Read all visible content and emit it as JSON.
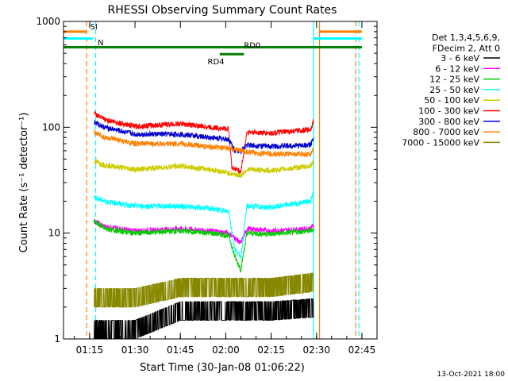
{
  "chart_data": {
    "type": "line",
    "title": "RHESSI Observing Summary Count Rates",
    "xlabel": "Start Time (30-Jan-08 01:06:22)",
    "ylabel": "Count Rate (s⁻¹ detector⁻¹)",
    "y_scale": "log",
    "ylim": [
      1,
      1000
    ],
    "xlim": [
      "01:06:22",
      "02:50:00"
    ],
    "x_ticks": [
      "01:15",
      "01:30",
      "01:45",
      "02:00",
      "02:15",
      "02:30",
      "02:45"
    ],
    "y_ticks": [
      "1",
      "10",
      "100",
      "1000"
    ],
    "grid": false,
    "legend_header": [
      "Det 1,3,4,5,6,9,",
      "FDecim 2, Att 0"
    ],
    "legend_position": "right",
    "timestamp": "13-Oct-2021 18:00",
    "series": [
      {
        "name": "3 - 6 keV",
        "color": "#000000",
        "points": [
          [
            "01:16:30",
            1.0
          ],
          [
            "01:30",
            1.0
          ],
          [
            "01:45",
            1.5
          ],
          [
            "02:00",
            1.5
          ],
          [
            "02:15",
            1.5
          ],
          [
            "02:29",
            1.6
          ]
        ]
      },
      {
        "name": "6 - 12 keV",
        "color": "#ff00ff",
        "points": [
          [
            "01:16:30",
            13
          ],
          [
            "01:20",
            11.5
          ],
          [
            "01:30",
            10.5
          ],
          [
            "01:45",
            11
          ],
          [
            "01:55",
            10.5
          ],
          [
            "02:01",
            10
          ],
          [
            "02:03",
            9
          ],
          [
            "02:05",
            8
          ],
          [
            "02:07",
            11
          ],
          [
            "02:15",
            10.5
          ],
          [
            "02:28",
            11
          ],
          [
            "02:29",
            12
          ]
        ]
      },
      {
        "name": "12 - 25 keV",
        "color": "#00cc00",
        "points": [
          [
            "01:16:30",
            13
          ],
          [
            "01:20",
            11
          ],
          [
            "01:30",
            10
          ],
          [
            "01:45",
            10.5
          ],
          [
            "01:55",
            10
          ],
          [
            "02:01",
            9.5
          ],
          [
            "02:03",
            6
          ],
          [
            "02:05",
            4.5
          ],
          [
            "02:07",
            10
          ],
          [
            "02:15",
            9.8
          ],
          [
            "02:28",
            10.5
          ],
          [
            "02:29",
            11
          ]
        ]
      },
      {
        "name": "25 - 50 keV",
        "color": "#00ffff",
        "points": [
          [
            "01:16:30",
            22
          ],
          [
            "01:20",
            20
          ],
          [
            "01:30",
            18
          ],
          [
            "01:45",
            18
          ],
          [
            "01:55",
            17
          ],
          [
            "02:01",
            16
          ],
          [
            "02:03",
            7
          ],
          [
            "02:05",
            6
          ],
          [
            "02:07",
            18
          ],
          [
            "02:15",
            17.5
          ],
          [
            "02:28",
            20
          ],
          [
            "02:29",
            25
          ]
        ]
      },
      {
        "name": "50 - 100 keV",
        "color": "#cccc00",
        "points": [
          [
            "01:16:30",
            48
          ],
          [
            "01:20",
            44
          ],
          [
            "01:30",
            40
          ],
          [
            "01:45",
            43
          ],
          [
            "01:55",
            40
          ],
          [
            "02:01",
            37
          ],
          [
            "02:03",
            36
          ],
          [
            "02:05",
            35
          ],
          [
            "02:07",
            40
          ],
          [
            "02:15",
            39
          ],
          [
            "02:28",
            43
          ],
          [
            "02:29",
            48
          ]
        ]
      },
      {
        "name": "100 - 300 keV",
        "color": "#ff0000",
        "points": [
          [
            "01:16:30",
            135
          ],
          [
            "01:20",
            118
          ],
          [
            "01:30",
            102
          ],
          [
            "01:45",
            108
          ],
          [
            "01:55",
            100
          ],
          [
            "02:01",
            96
          ],
          [
            "02:02",
            42
          ],
          [
            "02:05",
            38
          ],
          [
            "02:07",
            90
          ],
          [
            "02:15",
            88
          ],
          [
            "02:28",
            95
          ],
          [
            "02:29",
            115
          ]
        ]
      },
      {
        "name": "300 - 800 keV",
        "color": "#0000cc",
        "points": [
          [
            "01:16:30",
            112
          ],
          [
            "01:20",
            100
          ],
          [
            "01:30",
            86
          ],
          [
            "01:45",
            86
          ],
          [
            "01:55",
            80
          ],
          [
            "02:01",
            77
          ],
          [
            "02:03",
            60
          ],
          [
            "02:05",
            60
          ],
          [
            "02:07",
            68
          ],
          [
            "02:15",
            66
          ],
          [
            "02:28",
            68
          ],
          [
            "02:29",
            78
          ]
        ]
      },
      {
        "name": "800 - 7000 keV",
        "color": "#ff8000",
        "points": [
          [
            "01:16:30",
            90
          ],
          [
            "01:20",
            80
          ],
          [
            "01:30",
            70
          ],
          [
            "01:45",
            70
          ],
          [
            "01:55",
            65
          ],
          [
            "02:01",
            63
          ],
          [
            "02:03",
            62
          ],
          [
            "02:05",
            61
          ],
          [
            "02:07",
            58
          ],
          [
            "02:15",
            56
          ],
          [
            "02:28",
            56
          ],
          [
            "02:29",
            62
          ]
        ]
      },
      {
        "name": "7000 - 15000 keV",
        "color": "#888800",
        "points": [
          [
            "01:16:30",
            2
          ],
          [
            "01:30",
            2
          ],
          [
            "01:45",
            2.5
          ],
          [
            "02:00",
            2.5
          ],
          [
            "02:15",
            2.5
          ],
          [
            "02:29",
            2.8
          ]
        ]
      }
    ],
    "annotations": [
      {
        "label": "SI",
        "color": "#ff8000"
      },
      {
        "label": "N",
        "color": "#00ffff"
      },
      {
        "label": "RD0",
        "color": "#008000"
      },
      {
        "label": "RD4",
        "color": "#008000"
      }
    ],
    "flag_bars": [
      {
        "name": "saa_orange",
        "color": "#ff8000",
        "y": 800,
        "ranges": [
          [
            "01:06:22",
            "01:14"
          ],
          [
            "02:31",
            "02:45"
          ]
        ]
      },
      {
        "name": "night_cyan",
        "color": "#00ffff",
        "y": 690,
        "ranges": [
          [
            "01:06:22",
            "01:16"
          ],
          [
            "02:29",
            "02:45"
          ]
        ]
      },
      {
        "name": "decim_green",
        "color": "#008000",
        "y": 570,
        "ranges": [
          [
            "01:06:22",
            "02:45"
          ]
        ]
      },
      {
        "name": "rd4_green",
        "color": "#008000",
        "y": 490,
        "ranges": [
          [
            "01:58",
            "02:06"
          ]
        ]
      }
    ],
    "event_lines": [
      {
        "t": "01:14",
        "color": "#ff8000",
        "style": "dashed"
      },
      {
        "t": "01:17",
        "color": "#00ffff",
        "style": "dashed"
      },
      {
        "t": "02:29",
        "color": "#00ffff",
        "style": "solid"
      },
      {
        "t": "02:31",
        "color": "#ff8000",
        "style": "solid"
      },
      {
        "t": "02:43",
        "color": "#ff8000",
        "style": "dashed"
      },
      {
        "t": "02:44",
        "color": "#00ffff",
        "style": "dashed"
      }
    ]
  }
}
